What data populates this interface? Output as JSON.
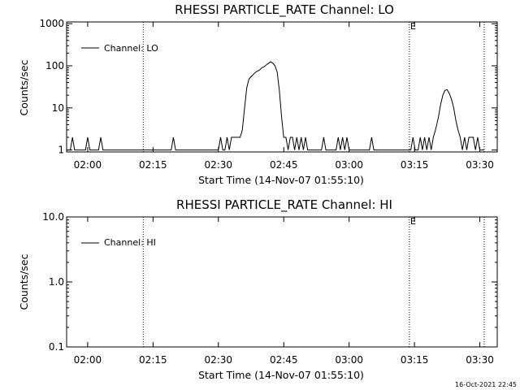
{
  "footer": "16-Oct-2021 22:45",
  "chart_data": [
    {
      "type": "line",
      "title": "RHESSI PARTICLE_RATE Channel: LO",
      "xlabel": "Start Time (14-Nov-07 01:55:10)",
      "ylabel": "Counts/sec",
      "yscale": "log",
      "ylim": [
        0.9,
        1100
      ],
      "xlim": [
        "01:55:10",
        "03:34:00"
      ],
      "x_ticks": [
        "02:00",
        "02:15",
        "02:30",
        "02:45",
        "03:00",
        "03:15",
        "03:30"
      ],
      "y_ticks": [
        "1",
        "10",
        "100",
        "1000"
      ],
      "y_tick_values": [
        1,
        10,
        100,
        1000
      ],
      "legend": "top-left",
      "grid": false,
      "markers": [
        {
          "x": "02:12:45",
          "label": ""
        },
        {
          "x": "03:13:50",
          "label": "E"
        },
        {
          "x": "03:31:00",
          "label": ""
        }
      ],
      "series": [
        {
          "name": "Channel: LO",
          "color": "#000000",
          "points": [
            [
              "01:55:10",
              1
            ],
            [
              "01:56:00",
              1
            ],
            [
              "01:56:30",
              2
            ],
            [
              "01:57:00",
              1
            ],
            [
              "01:59:30",
              1
            ],
            [
              "02:00:00",
              2
            ],
            [
              "02:00:30",
              1
            ],
            [
              "02:02:30",
              1
            ],
            [
              "02:03:00",
              2
            ],
            [
              "02:03:30",
              1
            ],
            [
              "02:19:10",
              1
            ],
            [
              "02:19:40",
              2
            ],
            [
              "02:20:10",
              1
            ],
            [
              "02:30:00",
              1
            ],
            [
              "02:30:30",
              2
            ],
            [
              "02:31:00",
              1
            ],
            [
              "02:31:30",
              1
            ],
            [
              "02:32:00",
              2
            ],
            [
              "02:32:30",
              1
            ],
            [
              "02:33:00",
              2
            ],
            [
              "02:35:00",
              2
            ],
            [
              "02:35:30",
              3
            ],
            [
              "02:36:00",
              10
            ],
            [
              "02:36:30",
              30
            ],
            [
              "02:37:00",
              48
            ],
            [
              "02:37:30",
              55
            ],
            [
              "02:38:00",
              62
            ],
            [
              "02:38:30",
              70
            ],
            [
              "02:39:00",
              75
            ],
            [
              "02:39:30",
              80
            ],
            [
              "02:40:00",
              90
            ],
            [
              "02:40:30",
              95
            ],
            [
              "02:41:00",
              105
            ],
            [
              "02:41:30",
              115
            ],
            [
              "02:42:00",
              125
            ],
            [
              "02:42:30",
              115
            ],
            [
              "02:43:00",
              100
            ],
            [
              "02:43:30",
              70
            ],
            [
              "02:44:00",
              25
            ],
            [
              "02:44:30",
              6
            ],
            [
              "02:45:00",
              2
            ],
            [
              "02:45:30",
              2
            ],
            [
              "02:46:00",
              1
            ],
            [
              "02:46:30",
              2
            ],
            [
              "02:47:00",
              2
            ],
            [
              "02:47:30",
              1
            ],
            [
              "02:48:00",
              2
            ],
            [
              "02:48:30",
              1
            ],
            [
              "02:49:00",
              2
            ],
            [
              "02:49:30",
              1
            ],
            [
              "02:50:00",
              2
            ],
            [
              "02:50:30",
              1
            ],
            [
              "02:53:40",
              1
            ],
            [
              "02:54:10",
              2
            ],
            [
              "02:54:40",
              1
            ],
            [
              "02:57:00",
              1
            ],
            [
              "02:57:30",
              2
            ],
            [
              "02:58:00",
              1
            ],
            [
              "02:58:30",
              2
            ],
            [
              "02:59:00",
              1
            ],
            [
              "02:59:30",
              2
            ],
            [
              "03:00:00",
              1
            ],
            [
              "03:04:40",
              1
            ],
            [
              "03:05:10",
              2
            ],
            [
              "03:05:40",
              1
            ],
            [
              "03:14:10",
              1
            ],
            [
              "03:14:40",
              2
            ],
            [
              "03:15:10",
              1
            ],
            [
              "03:15:50",
              1
            ],
            [
              "03:16:20",
              2
            ],
            [
              "03:16:50",
              1
            ],
            [
              "03:17:20",
              2
            ],
            [
              "03:17:50",
              1
            ],
            [
              "03:18:20",
              2
            ],
            [
              "03:18:50",
              1
            ],
            [
              "03:19:20",
              2
            ],
            [
              "03:19:50",
              3
            ],
            [
              "03:20:30",
              6
            ],
            [
              "03:21:00",
              12
            ],
            [
              "03:21:30",
              20
            ],
            [
              "03:22:00",
              26
            ],
            [
              "03:22:30",
              27
            ],
            [
              "03:23:00",
              22
            ],
            [
              "03:23:30",
              16
            ],
            [
              "03:24:00",
              10
            ],
            [
              "03:24:30",
              5
            ],
            [
              "03:25:00",
              3
            ],
            [
              "03:25:30",
              2
            ],
            [
              "03:26:00",
              1
            ],
            [
              "03:26:30",
              2
            ],
            [
              "03:27:00",
              1
            ],
            [
              "03:27:30",
              2
            ],
            [
              "03:28:30",
              2
            ],
            [
              "03:29:00",
              1
            ],
            [
              "03:29:30",
              2
            ],
            [
              "03:30:00",
              1
            ],
            [
              "03:31:00",
              1
            ]
          ]
        }
      ]
    },
    {
      "type": "line",
      "title": "RHESSI PARTICLE_RATE Channel: HI",
      "xlabel": "Start Time (14-Nov-07 01:55:10)",
      "ylabel": "Counts/sec",
      "yscale": "log",
      "ylim": [
        0.1,
        10.0
      ],
      "xlim": [
        "01:55:10",
        "03:34:00"
      ],
      "x_ticks": [
        "02:00",
        "02:15",
        "02:30",
        "02:45",
        "03:00",
        "03:15",
        "03:30"
      ],
      "y_ticks": [
        "0.1",
        "1.0",
        "10.0"
      ],
      "y_tick_values": [
        0.1,
        1.0,
        10.0
      ],
      "legend": "top-left",
      "grid": false,
      "markers": [
        {
          "x": "02:12:45",
          "label": ""
        },
        {
          "x": "03:13:50",
          "label": "E"
        },
        {
          "x": "03:31:00",
          "label": ""
        }
      ],
      "series": [
        {
          "name": "Channel: HI",
          "color": "#000000",
          "points": []
        }
      ]
    }
  ]
}
